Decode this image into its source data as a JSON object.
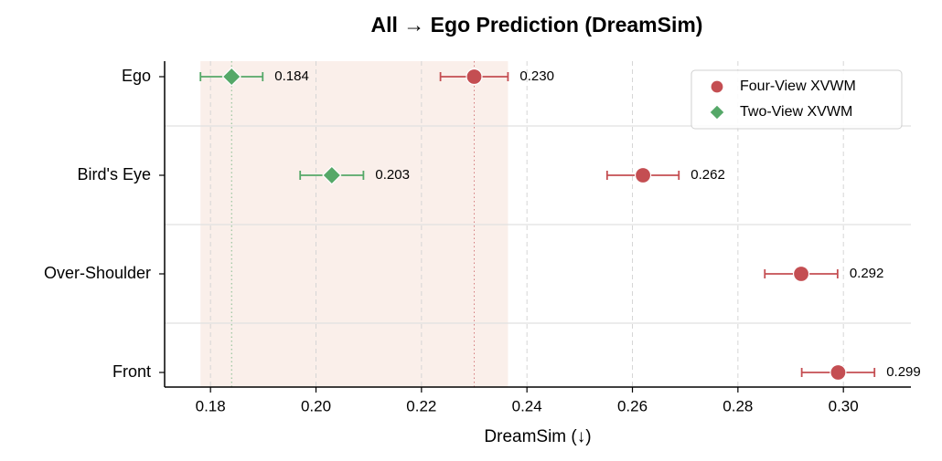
{
  "chart_data": {
    "type": "dot",
    "title": "All → Ego Prediction (DreamSim)",
    "x_label": "DreamSim (↓)",
    "categories": [
      "Ego",
      "Bird's Eye",
      "Over-Shoulder",
      "Front"
    ],
    "series": [
      {
        "name": "Four-View XVWM",
        "color": "#c44e52",
        "marker": "circle",
        "values": [
          0.23,
          0.262,
          0.292,
          0.299
        ],
        "errors": [
          0.0064,
          0.0068,
          0.0069,
          0.0069
        ],
        "value_labels": [
          "0.230",
          "0.262",
          "0.292",
          "0.299"
        ]
      },
      {
        "name": "Two-View XVWM",
        "color": "#55a868",
        "marker": "diamond",
        "values": [
          0.184,
          0.203,
          null,
          null
        ],
        "errors": [
          0.0059,
          0.006,
          null,
          null
        ],
        "value_labels": [
          "0.184",
          "0.203",
          null,
          null
        ]
      }
    ],
    "xlim": [
      0.1713,
      0.3128
    ],
    "xticks": [
      0.18,
      {
        "value": 0.2,
        "label": "0.20"
      },
      0.22,
      0.24,
      0.26,
      0.28,
      {
        "value": 0.3,
        "label": "0.30"
      }
    ],
    "grid": true,
    "legend": "upper right"
  }
}
